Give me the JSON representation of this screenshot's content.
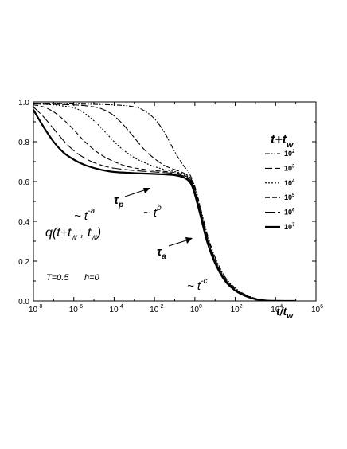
{
  "chart_data": {
    "type": "line",
    "x_scale": "log",
    "x_range": [
      1e-08,
      1000000.0
    ],
    "y_range": [
      0.0,
      1.0
    ],
    "x_ticks": [
      {
        "value": 1e-08,
        "base": "10",
        "exp": "-8"
      },
      {
        "value": 1e-06,
        "base": "10",
        "exp": "-6"
      },
      {
        "value": 0.0001,
        "base": "10",
        "exp": "-4"
      },
      {
        "value": 0.01,
        "base": "10",
        "exp": "-2"
      },
      {
        "value": 1.0,
        "base": "10",
        "exp": "0"
      },
      {
        "value": 100.0,
        "base": "10",
        "exp": "2"
      },
      {
        "value": 10000.0,
        "base": "10",
        "exp": "4"
      },
      {
        "value": 1000000.0,
        "base": "10",
        "exp": "6"
      }
    ],
    "y_ticks": [
      "0.0",
      "0.2",
      "0.4",
      "0.6",
      "0.8",
      "1.0"
    ],
    "xlabel": {
      "main": "t/t",
      "sub": "w"
    },
    "ylabel": {
      "main": "q(t+t",
      "sub1": "w",
      "mid": " , t",
      "sub2": "w",
      "end": ")"
    },
    "params": {
      "T": "T=0.5",
      "h": "h=0"
    },
    "legend": {
      "title_main": "t+t",
      "title_sub": "w",
      "position": "right"
    },
    "series": [
      {
        "label_base": "10",
        "label_exp": "2",
        "dash": "6,2,1.5,2,1.5,2",
        "width": 1.1,
        "points": [
          [
            -8,
            0.993
          ],
          [
            -6,
            0.99
          ],
          [
            -4,
            0.985
          ],
          [
            -3,
            0.975
          ],
          [
            -2.5,
            0.955
          ],
          [
            -2,
            0.915
          ],
          [
            -1.5,
            0.845
          ],
          [
            -1,
            0.75
          ],
          [
            -0.6,
            0.685
          ],
          [
            -0.3,
            0.645
          ],
          [
            0,
            0.575
          ],
          [
            0.3,
            0.46
          ],
          [
            0.6,
            0.34
          ],
          [
            1,
            0.22
          ],
          [
            1.5,
            0.12
          ],
          [
            2,
            0.065
          ],
          [
            2.5,
            0.032
          ],
          [
            3,
            0.013
          ],
          [
            3.5,
            0.004
          ],
          [
            4,
            0.001
          ],
          [
            5,
            0.0
          ]
        ]
      },
      {
        "label_base": "10",
        "label_exp": "3",
        "dash": "9,3",
        "width": 1.1,
        "points": [
          [
            -8,
            0.99
          ],
          [
            -6,
            0.985
          ],
          [
            -5,
            0.975
          ],
          [
            -4.5,
            0.96
          ],
          [
            -4,
            0.93
          ],
          [
            -3.5,
            0.88
          ],
          [
            -3,
            0.82
          ],
          [
            -2.5,
            0.76
          ],
          [
            -2,
            0.715
          ],
          [
            -1.5,
            0.68
          ],
          [
            -1,
            0.66
          ],
          [
            -0.5,
            0.64
          ],
          [
            -0.2,
            0.615
          ],
          [
            0,
            0.565
          ],
          [
            0.3,
            0.45
          ],
          [
            0.6,
            0.33
          ],
          [
            1,
            0.21
          ],
          [
            1.5,
            0.112
          ],
          [
            2,
            0.06
          ],
          [
            2.5,
            0.03
          ],
          [
            3,
            0.012
          ],
          [
            3.5,
            0.003
          ],
          [
            4,
            0.001
          ],
          [
            5,
            0.0
          ]
        ]
      },
      {
        "label_base": "10",
        "label_exp": "4",
        "dash": "2,2",
        "width": 1.1,
        "points": [
          [
            -8,
            0.99
          ],
          [
            -7,
            0.985
          ],
          [
            -6,
            0.97
          ],
          [
            -5.5,
            0.945
          ],
          [
            -5,
            0.905
          ],
          [
            -4.5,
            0.855
          ],
          [
            -4,
            0.8
          ],
          [
            -3.5,
            0.755
          ],
          [
            -3,
            0.72
          ],
          [
            -2.5,
            0.695
          ],
          [
            -2,
            0.675
          ],
          [
            -1.5,
            0.66
          ],
          [
            -1,
            0.65
          ],
          [
            -0.5,
            0.635
          ],
          [
            -0.2,
            0.61
          ],
          [
            0,
            0.555
          ],
          [
            0.3,
            0.44
          ],
          [
            0.6,
            0.32
          ],
          [
            1,
            0.205
          ],
          [
            1.5,
            0.108
          ],
          [
            2,
            0.058
          ],
          [
            2.5,
            0.028
          ],
          [
            3,
            0.011
          ],
          [
            3.5,
            0.003
          ],
          [
            4,
            0.001
          ],
          [
            5,
            0.0
          ]
        ]
      },
      {
        "label_base": "10",
        "label_exp": "5",
        "dash": "6,3",
        "width": 1.1,
        "points": [
          [
            -8,
            0.985
          ],
          [
            -7.5,
            0.975
          ],
          [
            -7,
            0.95
          ],
          [
            -6.5,
            0.91
          ],
          [
            -6,
            0.86
          ],
          [
            -5.5,
            0.805
          ],
          [
            -5,
            0.76
          ],
          [
            -4.5,
            0.725
          ],
          [
            -4,
            0.7
          ],
          [
            -3.5,
            0.68
          ],
          [
            -3,
            0.668
          ],
          [
            -2,
            0.655
          ],
          [
            -1,
            0.645
          ],
          [
            -0.5,
            0.63
          ],
          [
            -0.2,
            0.605
          ],
          [
            0,
            0.55
          ],
          [
            0.3,
            0.435
          ],
          [
            0.6,
            0.315
          ],
          [
            1,
            0.2
          ],
          [
            1.5,
            0.105
          ],
          [
            2,
            0.056
          ],
          [
            2.5,
            0.027
          ],
          [
            3,
            0.01
          ],
          [
            3.5,
            0.003
          ],
          [
            4,
            0.001
          ],
          [
            5,
            0.0
          ]
        ]
      },
      {
        "label_base": "10",
        "label_exp": "6",
        "dash": "12,4",
        "width": 1.1,
        "points": [
          [
            -8,
            0.975
          ],
          [
            -7.5,
            0.925
          ],
          [
            -7,
            0.865
          ],
          [
            -6.5,
            0.805
          ],
          [
            -6,
            0.755
          ],
          [
            -5.5,
            0.72
          ],
          [
            -5,
            0.695
          ],
          [
            -4.5,
            0.678
          ],
          [
            -4,
            0.667
          ],
          [
            -3,
            0.655
          ],
          [
            -2,
            0.648
          ],
          [
            -1,
            0.64
          ],
          [
            -0.5,
            0.625
          ],
          [
            -0.2,
            0.6
          ],
          [
            0,
            0.545
          ],
          [
            0.3,
            0.43
          ],
          [
            0.6,
            0.31
          ],
          [
            1,
            0.195
          ],
          [
            1.5,
            0.102
          ],
          [
            2,
            0.054
          ],
          [
            2.5,
            0.026
          ],
          [
            3,
            0.01
          ],
          [
            3.5,
            0.003
          ],
          [
            4,
            0.001
          ],
          [
            5,
            0.0
          ]
        ]
      },
      {
        "label_base": "10",
        "label_exp": "7",
        "dash": "",
        "width": 2.2,
        "points": [
          [
            -8,
            0.96
          ],
          [
            -7.5,
            0.875
          ],
          [
            -7,
            0.8
          ],
          [
            -6.5,
            0.745
          ],
          [
            -6,
            0.71
          ],
          [
            -5.5,
            0.685
          ],
          [
            -5,
            0.668
          ],
          [
            -4.5,
            0.656
          ],
          [
            -4,
            0.648
          ],
          [
            -3,
            0.642
          ],
          [
            -2,
            0.638
          ],
          [
            -1,
            0.632
          ],
          [
            -0.5,
            0.618
          ],
          [
            -0.2,
            0.59
          ],
          [
            0,
            0.535
          ],
          [
            0.3,
            0.42
          ],
          [
            0.6,
            0.3
          ],
          [
            1,
            0.19
          ],
          [
            1.5,
            0.1
          ],
          [
            2,
            0.052
          ],
          [
            2.5,
            0.025
          ],
          [
            3,
            0.009
          ],
          [
            3.5,
            0.002
          ],
          [
            4,
            0.0005
          ],
          [
            5,
            0.0
          ]
        ]
      }
    ],
    "annotations": {
      "ta": {
        "text": "~ t",
        "sup": "-a"
      },
      "tb": {
        "text": "~ t",
        "sup": "b"
      },
      "tc": {
        "text": "~ t",
        "sup": "-c"
      },
      "tau_p": {
        "text": "τ",
        "sub": "p"
      },
      "tau_a": {
        "text": "τ",
        "sub": "a"
      }
    }
  }
}
